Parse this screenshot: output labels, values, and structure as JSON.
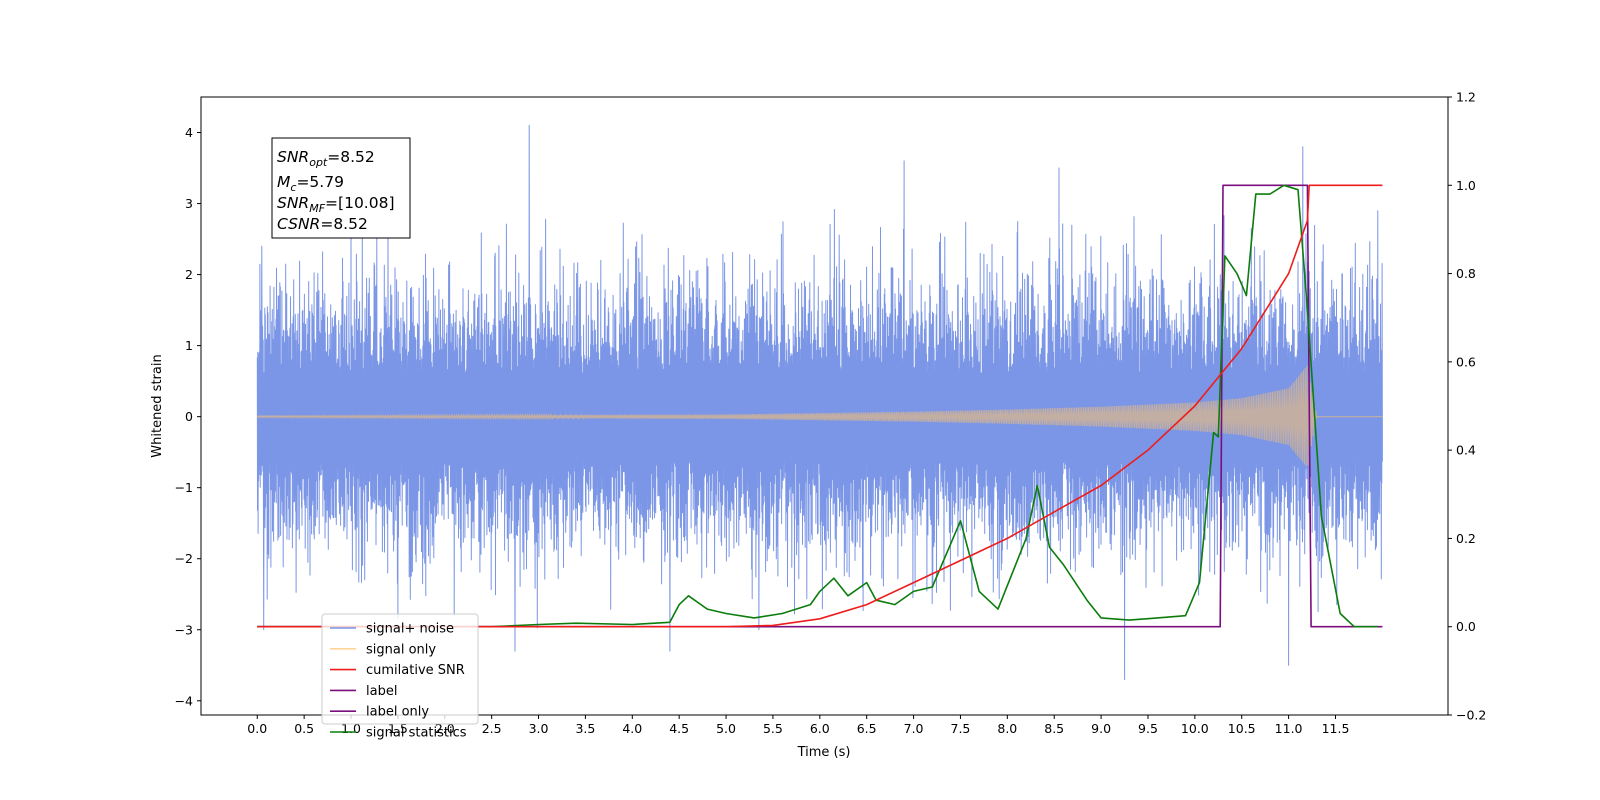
{
  "chart_data": {
    "type": "line",
    "title": "",
    "xlabel": "Time (s)",
    "ylabel_left": "Whitened strain",
    "ylabel_right": "",
    "xlim": [
      -0.6,
      12.7
    ],
    "ylim_left": [
      -4.2,
      4.5
    ],
    "ylim_right": [
      -0.2,
      1.2
    ],
    "grid": false,
    "legend_position": "lower-left",
    "x_ticks": [
      0.0,
      0.5,
      1.0,
      1.5,
      2.0,
      2.5,
      3.0,
      3.5,
      4.0,
      4.5,
      5.0,
      5.5,
      6.0,
      6.5,
      7.0,
      7.5,
      8.0,
      8.5,
      9.0,
      9.5,
      10.0,
      10.5,
      11.0,
      11.5
    ],
    "x_tick_labels": [
      "0.0",
      "0.5",
      "1.0",
      "1.5",
      "2.0",
      "2.5",
      "3.0",
      "3.5",
      "4.0",
      "4.5",
      "5.0",
      "5.5",
      "6.0",
      "6.5",
      "7.0",
      "7.5",
      "8.0",
      "8.5",
      "9.0",
      "9.5",
      "10.0",
      "10.5",
      "11.0",
      "11.5"
    ],
    "y_left_ticks": [
      -4,
      -3,
      -2,
      -1,
      0,
      1,
      2,
      3,
      4
    ],
    "y_left_tick_labels": [
      "−4",
      "−3",
      "−2",
      "−1",
      "0",
      "1",
      "2",
      "3",
      "4"
    ],
    "y_right_ticks": [
      -0.2,
      0.0,
      0.2,
      0.4,
      0.6,
      0.8,
      1.0,
      1.2
    ],
    "y_right_tick_labels": [
      "−0.2",
      "0.0",
      "0.2",
      "0.4",
      "0.6",
      "0.8",
      "1.0",
      "1.2"
    ],
    "annotation": {
      "lines": [
        {
          "main": "SNR",
          "sub": "opt",
          "rest": "=8.52"
        },
        {
          "main": "M",
          "sub": "c",
          "rest": "=5.79"
        },
        {
          "main": "SNR",
          "sub": "MF",
          "rest": "=[10.08]"
        },
        {
          "main": "CSNR",
          "sub": "",
          "rest": "=8.52"
        }
      ]
    },
    "series": [
      {
        "name": "signal+ noise",
        "axis": "left",
        "color": "#7b96e6",
        "kind": "noise",
        "x_range": [
          0.0,
          12.0
        ],
        "envelope_typical": 1.5,
        "peaks": [
          [
            0.05,
            2.4
          ],
          [
            2.9,
            4.1
          ],
          [
            2.75,
            -3.3
          ],
          [
            4.4,
            -3.3
          ],
          [
            5.35,
            -3.0
          ],
          [
            6.9,
            3.6
          ],
          [
            8.55,
            3.5
          ],
          [
            9.25,
            -3.7
          ],
          [
            11.0,
            -3.5
          ],
          [
            11.15,
            3.8
          ],
          [
            11.95,
            2.9
          ],
          [
            0.07,
            -3.0
          ]
        ]
      },
      {
        "name": "signal only",
        "axis": "left",
        "color": "#ffc36b",
        "kind": "chirp",
        "x": [
          0.0,
          5.0,
          6.0,
          7.0,
          8.0,
          9.0,
          10.0,
          10.5,
          11.0,
          11.2,
          11.3,
          12.0
        ],
        "amplitude": [
          0.01,
          0.03,
          0.05,
          0.07,
          0.1,
          0.14,
          0.2,
          0.26,
          0.4,
          0.72,
          0.0,
          0.0
        ]
      },
      {
        "name": "cumilative SNR",
        "axis": "right",
        "color": "#ee1c1c",
        "x": [
          0.0,
          5.0,
          5.5,
          6.0,
          6.5,
          7.0,
          7.5,
          8.0,
          8.5,
          9.0,
          9.5,
          10.0,
          10.5,
          11.0,
          11.2,
          11.22,
          12.0
        ],
        "values": [
          0.0,
          0.0,
          0.003,
          0.018,
          0.05,
          0.1,
          0.15,
          0.2,
          0.26,
          0.32,
          0.4,
          0.5,
          0.63,
          0.8,
          0.92,
          1.0,
          1.0
        ]
      },
      {
        "name": "label",
        "axis": "right",
        "color": "#7b0e7e",
        "x": [
          0.0,
          10.27,
          10.3,
          11.2,
          11.24,
          12.0
        ],
        "values": [
          0.0,
          0.0,
          1.0,
          1.0,
          0.0,
          0.0
        ]
      },
      {
        "name": "label only",
        "axis": "right",
        "color": "#7b0e7e",
        "hidden": true,
        "x": [
          0.0
        ],
        "values": [
          0.0
        ]
      },
      {
        "name": "signal statistics",
        "axis": "right",
        "color": "#0c7d0c",
        "x": [
          0.0,
          2.5,
          3.0,
          3.4,
          4.0,
          4.4,
          4.5,
          4.6,
          4.8,
          5.0,
          5.3,
          5.6,
          5.9,
          6.0,
          6.15,
          6.3,
          6.5,
          6.6,
          6.8,
          7.0,
          7.2,
          7.5,
          7.7,
          7.9,
          8.2,
          8.32,
          8.45,
          8.6,
          8.85,
          9.0,
          9.3,
          9.6,
          9.9,
          10.05,
          10.2,
          10.25,
          10.32,
          10.45,
          10.55,
          10.65,
          10.8,
          10.95,
          11.1,
          11.2,
          11.35,
          11.55,
          11.7,
          11.95
        ],
        "values": [
          0.0,
          0.0,
          0.005,
          0.008,
          0.005,
          0.01,
          0.05,
          0.07,
          0.04,
          0.03,
          0.02,
          0.03,
          0.05,
          0.08,
          0.11,
          0.07,
          0.1,
          0.06,
          0.05,
          0.08,
          0.09,
          0.24,
          0.08,
          0.04,
          0.2,
          0.32,
          0.18,
          0.14,
          0.06,
          0.02,
          0.015,
          0.02,
          0.025,
          0.1,
          0.44,
          0.43,
          0.84,
          0.8,
          0.75,
          0.98,
          0.98,
          1.0,
          0.99,
          0.72,
          0.25,
          0.03,
          0.0,
          0.0
        ]
      }
    ]
  }
}
